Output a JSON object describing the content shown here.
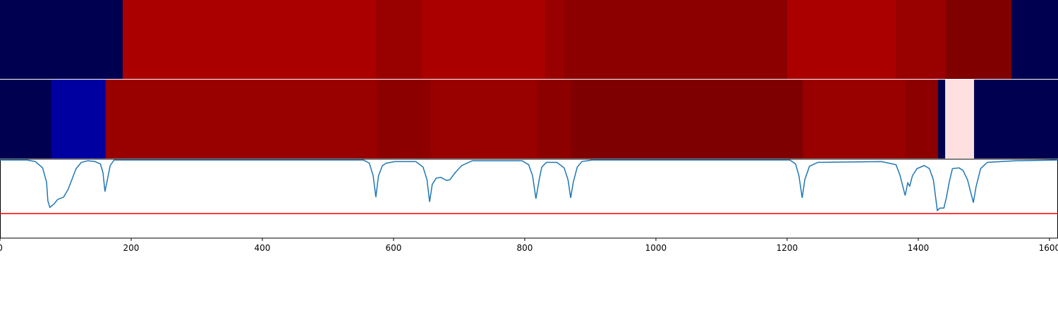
{
  "chart_data": {
    "type": "line",
    "strips": [
      {
        "edges": [
          0,
          187,
          573,
          643,
          831,
          860,
          1200,
          1366,
          1442,
          1542,
          1613
        ],
        "colors": [
          "#000050",
          "#aa0000",
          "#990000",
          "#aa0000",
          "#990000",
          "#8c0000",
          "#aa0000",
          "#990000",
          "#800000",
          "#000050"
        ]
      },
      {
        "edges": [
          0,
          78,
          161,
          575,
          656,
          819,
          871,
          1224,
          1381,
          1430,
          1441,
          1485,
          1613
        ],
        "colors": [
          "#000050",
          "#0000a0",
          "#990000",
          "#8c0000",
          "#990000",
          "#8c0000",
          "#7f0000",
          "#990000",
          "#8c0000",
          "#000050",
          "#ffe0e0",
          "#000050"
        ]
      }
    ],
    "x": [
      0,
      41,
      54,
      65,
      71,
      73,
      76,
      82,
      88,
      97,
      104,
      110,
      116,
      124,
      134,
      145,
      153,
      157,
      160,
      163,
      168,
      174,
      554,
      563,
      569,
      573,
      577,
      583,
      589,
      602,
      634,
      645,
      651,
      655,
      659,
      665,
      672,
      681,
      686,
      694,
      704,
      720,
      796,
      806,
      812,
      817,
      822,
      826,
      833,
      849,
      860,
      866,
      870,
      874,
      880,
      887,
      903,
      1204,
      1213,
      1218,
      1223,
      1227,
      1234,
      1247,
      1344,
      1366,
      1372,
      1380,
      1384,
      1387,
      1391,
      1398,
      1409,
      1417,
      1423,
      1429,
      1433,
      1439,
      1443,
      1447,
      1452,
      1462,
      1468,
      1475,
      1484,
      1488,
      1495,
      1505,
      1548,
      1613
    ],
    "values": [
      0.99,
      0.99,
      0.97,
      0.89,
      0.71,
      0.47,
      0.39,
      0.43,
      0.49,
      0.52,
      0.62,
      0.75,
      0.88,
      0.96,
      0.98,
      0.97,
      0.94,
      0.83,
      0.59,
      0.71,
      0.92,
      0.99,
      0.99,
      0.95,
      0.79,
      0.52,
      0.79,
      0.92,
      0.95,
      0.97,
      0.97,
      0.9,
      0.74,
      0.46,
      0.68,
      0.76,
      0.77,
      0.73,
      0.74,
      0.83,
      0.92,
      0.98,
      0.98,
      0.93,
      0.79,
      0.5,
      0.74,
      0.9,
      0.96,
      0.96,
      0.89,
      0.74,
      0.51,
      0.71,
      0.9,
      0.97,
      0.99,
      0.99,
      0.94,
      0.79,
      0.51,
      0.74,
      0.91,
      0.96,
      0.97,
      0.93,
      0.8,
      0.54,
      0.7,
      0.66,
      0.79,
      0.88,
      0.92,
      0.88,
      0.74,
      0.35,
      0.38,
      0.38,
      0.52,
      0.7,
      0.88,
      0.89,
      0.86,
      0.74,
      0.45,
      0.65,
      0.88,
      0.96,
      0.98,
      0.99
    ],
    "color": "#1f77b4",
    "threshold": {
      "value": 0.31,
      "color": "#ff0000"
    },
    "xlim": [
      0,
      1613
    ],
    "ylim": [
      0,
      1
    ],
    "xticks": [
      0,
      200,
      400,
      600,
      800,
      1000,
      1200,
      1400,
      1600
    ]
  }
}
